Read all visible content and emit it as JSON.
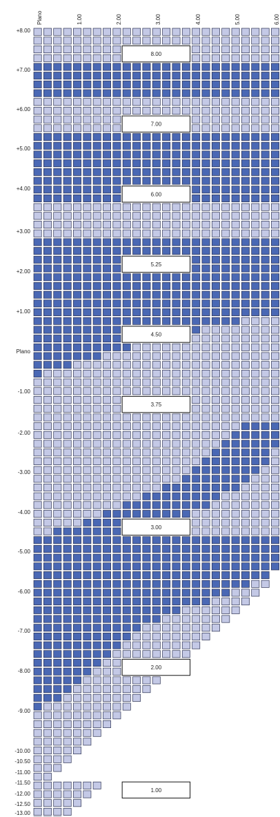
{
  "colors": {
    "dark": "#4a68b4",
    "light": "#c4c9e6",
    "stroke": "#2a3050"
  },
  "chart_data": {
    "type": "heatmap",
    "x_labels": [
      "Plano",
      "1.00",
      "2.00",
      "3.00",
      "4.00",
      "5.00",
      "6.00"
    ],
    "y_labels": [
      "+8.00",
      "+7.00",
      "+6.00",
      "+5.00",
      "+4.00",
      "+3.00",
      "+2.00",
      "+1.00",
      "Plano",
      "-1.00",
      "-2.00",
      "-3.00",
      "-4.00",
      "-5.00",
      "-6.00",
      "-7.00",
      "-8.00",
      "-9.00",
      "-10.00",
      "-10.50",
      "-11.00",
      "-11.50",
      "-12.00",
      "-12.50",
      "-13.00"
    ],
    "box_labels": [
      "8.00",
      "7.00",
      "6.00",
      "5.25",
      "4.50",
      "3.75",
      "3.00",
      "2.00",
      "1.00"
    ],
    "band_rows": [
      {
        "from": 0,
        "to": 3,
        "level": "light"
      },
      {
        "from": 4,
        "to": 7,
        "level": "dark"
      },
      {
        "from": 8,
        "to": 11,
        "level": "light"
      },
      {
        "from": 12,
        "to": 19,
        "level": "dark"
      },
      {
        "from": 20,
        "to": 23,
        "level": "light"
      },
      {
        "from": 24,
        "to": 31,
        "level": "dark"
      }
    ],
    "dark_extent": [
      {
        "row": 32,
        "dark": 25
      },
      {
        "row": 33,
        "dark": 21
      },
      {
        "row": 34,
        "dark": 17
      },
      {
        "row": 35,
        "dark": 13
      },
      {
        "row": 36,
        "dark": 10
      },
      {
        "row": 37,
        "dark": 7
      },
      {
        "row": 38,
        "dark": 4
      },
      {
        "row": 39,
        "dark": 1
      },
      {
        "row": 58,
        "dark": 25
      },
      {
        "row": 59,
        "dark": 25
      },
      {
        "row": 60,
        "dark": 25
      },
      {
        "row": 61,
        "dark": 25
      },
      {
        "row": 62,
        "dark": 24
      },
      {
        "row": 63,
        "dark": 22
      },
      {
        "row": 64,
        "dark": 20
      },
      {
        "row": 65,
        "dark": 18
      },
      {
        "row": 66,
        "dark": 15
      },
      {
        "row": 67,
        "dark": 13
      },
      {
        "row": 68,
        "dark": 11
      },
      {
        "row": 69,
        "dark": 10
      },
      {
        "row": 70,
        "dark": 9
      },
      {
        "row": 71,
        "dark": 8
      },
      {
        "row": 72,
        "dark": 7
      },
      {
        "row": 73,
        "dark": 6
      },
      {
        "row": 74,
        "dark": 5
      },
      {
        "row": 75,
        "dark": 4
      },
      {
        "row": 76,
        "dark": 3
      },
      {
        "row": 77,
        "dark": 1
      }
    ],
    "dark_ranges": [
      {
        "row": 45,
        "from": 21,
        "to": 24
      },
      {
        "row": 46,
        "from": 20,
        "to": 24
      },
      {
        "row": 47,
        "from": 19,
        "to": 24
      },
      {
        "row": 48,
        "from": 18,
        "to": 23
      },
      {
        "row": 49,
        "from": 17,
        "to": 23
      },
      {
        "row": 50,
        "from": 16,
        "to": 22
      },
      {
        "row": 51,
        "from": 15,
        "to": 21
      },
      {
        "row": 52,
        "from": 13,
        "to": 20
      },
      {
        "row": 53,
        "from": 11,
        "to": 18
      },
      {
        "row": 54,
        "from": 9,
        "to": 17
      },
      {
        "row": 55,
        "from": 7,
        "to": 15
      },
      {
        "row": 56,
        "from": 5,
        "to": 13
      },
      {
        "row": 57,
        "from": 2,
        "to": 11
      }
    ]
  }
}
